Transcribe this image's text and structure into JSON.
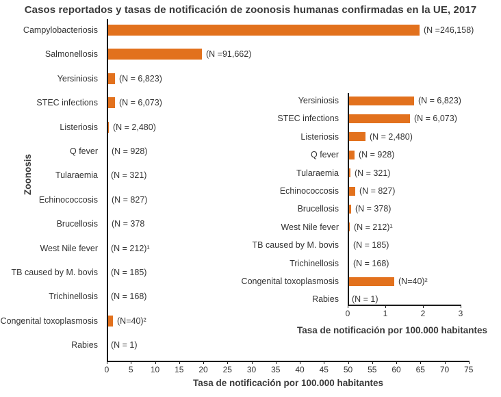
{
  "chart_data": [
    {
      "type": "bar",
      "orientation": "horizontal",
      "title": "Casos reportados y tasas de notificación de zoonosis humanas confirmadas en la UE, 2017",
      "xlabel": "Tasa de notificación por 100.000 habitantes",
      "ylabel": "Zoonosis",
      "xlim": [
        0,
        75
      ],
      "xticks": [
        0,
        5,
        10,
        15,
        20,
        25,
        30,
        35,
        40,
        45,
        50,
        55,
        60,
        65,
        70,
        75
      ],
      "grid": false,
      "legend": false,
      "bar_color": "#E2711D",
      "categories": [
        "Campylobacteriosis",
        "Salmonellosis",
        "Yersiniosis",
        "STEC infections",
        "Listeriosis",
        "Q fever",
        "Tularaemia",
        "Echinococcosis",
        "Brucellosis",
        "West Nile fever",
        "TB caused by M. bovis",
        "Trichinellosis",
        "Congenital toxoplasmosis",
        "Rabies"
      ],
      "values": [
        64.8,
        19.7,
        1.77,
        1.66,
        0.48,
        0.19,
        0.07,
        0.2,
        0.09,
        0.06,
        0.04,
        0.03,
        1.24,
        0.0
      ],
      "annotations": [
        "(N =246,158)",
        "(N =91,662)",
        "(N = 6,823)",
        "(N = 6,073)",
        "(N = 2,480)",
        "(N = 928)",
        "(N = 321)",
        "(N = 827)",
        "(N = 378",
        "(N = 212)¹",
        "(N = 185)",
        "(N = 168)",
        "(N=40)²",
        "(N = 1)"
      ]
    },
    {
      "type": "bar",
      "orientation": "horizontal",
      "title": "",
      "xlabel": "Tasa de notificación por 100.000 habitantes",
      "ylabel": "",
      "xlim": [
        0,
        3
      ],
      "xticks": [
        0,
        1,
        2,
        3
      ],
      "grid": false,
      "legend": false,
      "bar_color": "#E2711D",
      "categories": [
        "Yersiniosis",
        "STEC infections",
        "Listeriosis",
        "Q fever",
        "Tularaemia",
        "Echinococcosis",
        "Brucellosis",
        "West Nile fever",
        "TB caused by M. bovis",
        "Trichinellosis",
        "Congenital toxoplasmosis",
        "Rabies"
      ],
      "values": [
        1.77,
        1.66,
        0.48,
        0.19,
        0.07,
        0.2,
        0.09,
        0.06,
        0.04,
        0.03,
        1.24,
        0.0
      ],
      "annotations": [
        "(N = 6,823)",
        "(N = 6,073)",
        "(N = 2,480)",
        "(N = 928)",
        "(N = 321)",
        "(N = 827)",
        "(N = 378)",
        "(N = 212)¹",
        "(N = 185)",
        "(N = 168)",
        "(N=40)²",
        "(N = 1)"
      ]
    }
  ]
}
